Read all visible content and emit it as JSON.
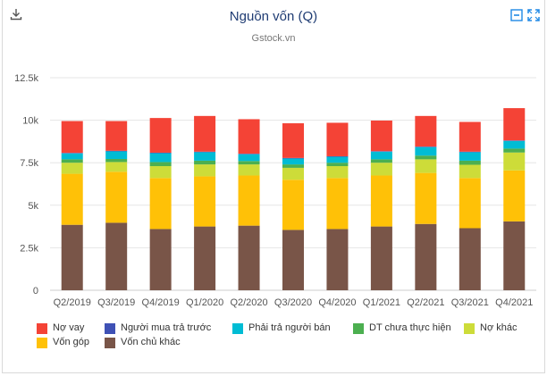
{
  "header": {
    "title": "Nguồn vốn (Q)",
    "subtitle": "Gstock.vn",
    "download_icon": "download-icon",
    "collapse_icon": "collapse-icon",
    "fullscreen_icon": "fullscreen-icon"
  },
  "chart_data": {
    "type": "bar",
    "stacked": true,
    "title": "Nguồn vốn (Q)",
    "subtitle": "Gstock.vn",
    "categories": [
      "Q2/2019",
      "Q3/2019",
      "Q4/2019",
      "Q1/2020",
      "Q2/2020",
      "Q3/2020",
      "Q4/2020",
      "Q1/2021",
      "Q2/2021",
      "Q3/2021",
      "Q4/2021"
    ],
    "ylim": [
      0,
      12500
    ],
    "yticks": [
      0,
      2500,
      5000,
      7500,
      10000,
      12500
    ],
    "ytick_labels": [
      "0",
      "2.5k",
      "5k",
      "7.5k",
      "10k",
      "12.5k"
    ],
    "grid": true,
    "legend_position": "bottom",
    "series": [
      {
        "name": "Vốn chủ khác",
        "color": "#795548",
        "values": [
          3850,
          3970,
          3600,
          3750,
          3800,
          3550,
          3600,
          3750,
          3900,
          3650,
          4050
        ]
      },
      {
        "name": "Vốn góp",
        "color": "#ffc107",
        "values": [
          3000,
          3000,
          3000,
          2950,
          2950,
          2950,
          3000,
          3000,
          3000,
          2950,
          3000
        ]
      },
      {
        "name": "Nợ khác",
        "color": "#cddc39",
        "values": [
          650,
          570,
          700,
          700,
          650,
          700,
          700,
          750,
          800,
          780,
          1050
        ]
      },
      {
        "name": "DT chưa thực hiện",
        "color": "#4caf50",
        "values": [
          200,
          180,
          240,
          220,
          200,
          200,
          200,
          200,
          220,
          240,
          230
        ]
      },
      {
        "name": "Phải trả người bán",
        "color": "#00bcd4",
        "values": [
          350,
          450,
          520,
          500,
          400,
          350,
          350,
          450,
          500,
          500,
          450
        ]
      },
      {
        "name": "Người mua trả trước",
        "color": "#3f51b5",
        "values": [
          30,
          30,
          30,
          30,
          30,
          30,
          30,
          30,
          30,
          30,
          30
        ]
      },
      {
        "name": "Nợ vay",
        "color": "#f44336",
        "values": [
          1870,
          1750,
          2040,
          2100,
          2030,
          2040,
          1970,
          1800,
          1800,
          1750,
          1900
        ]
      }
    ]
  },
  "legend": [
    {
      "label": "Nợ vay",
      "color": "#f44336"
    },
    {
      "label": "Người mua trả trước",
      "color": "#3f51b5"
    },
    {
      "label": "Phải trả người bán",
      "color": "#00bcd4"
    },
    {
      "label": "DT chưa thực hiện",
      "color": "#4caf50"
    },
    {
      "label": "Nợ khác",
      "color": "#cddc39"
    },
    {
      "label": "Vốn góp",
      "color": "#ffc107"
    },
    {
      "label": "Vốn chủ khác",
      "color": "#795548"
    }
  ]
}
